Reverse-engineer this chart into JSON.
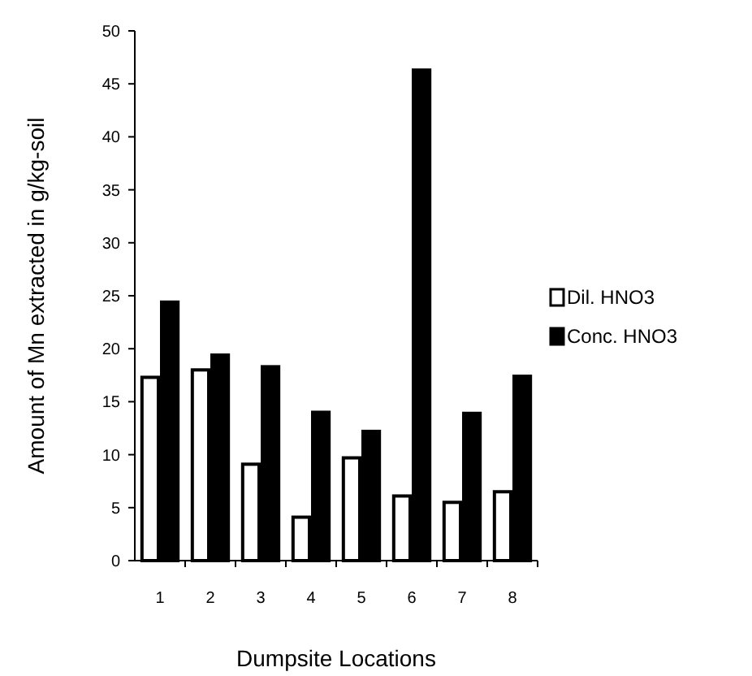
{
  "chart_data": {
    "type": "bar",
    "categories": [
      "1",
      "2",
      "3",
      "4",
      "5",
      "6",
      "7",
      "8"
    ],
    "series": [
      {
        "name": "Dil. HNO3",
        "color": "#ffffff",
        "values": [
          17.3,
          18,
          9.1,
          4.1,
          9.7,
          6.1,
          5.5,
          6.5
        ]
      },
      {
        "name": "Conc. HNO3",
        "color": "#000000",
        "values": [
          24.4,
          19.4,
          18.3,
          14,
          12.2,
          46.3,
          13.9,
          17.4
        ]
      }
    ],
    "xlabel": "Dumpsite Locations",
    "ylabel": "Amount of Mn extracted in g/kg-soil",
    "ylim": [
      0,
      50
    ],
    "yticks": [
      0,
      5,
      10,
      15,
      20,
      25,
      30,
      35,
      40,
      45,
      50
    ],
    "grid": false,
    "legend": "right"
  }
}
